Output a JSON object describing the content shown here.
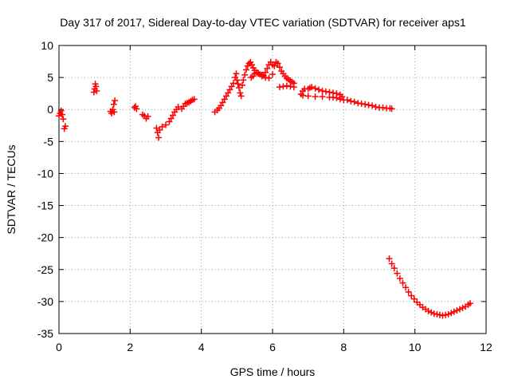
{
  "chart_data": {
    "type": "scatter",
    "title": "Day 317 of 2017, Sidereal Day-to-day VTEC variation (SDTVAR) for receiver aps1",
    "xlabel": "GPS time / hours",
    "ylabel": "SDTVAR / TECUs",
    "xlim": [
      0,
      12
    ],
    "ylim": [
      -35,
      10
    ],
    "xticks": [
      0,
      2,
      4,
      6,
      8,
      10,
      12
    ],
    "yticks": [
      10,
      5,
      0,
      -5,
      -10,
      -15,
      -20,
      -25,
      -30,
      -35
    ],
    "grid": true,
    "marker": "+",
    "color": "#ff0000",
    "series": [
      {
        "name": "aps1",
        "points": [
          [
            0.0,
            -1.0
          ],
          [
            0.03,
            -0.6
          ],
          [
            0.06,
            -0.2
          ],
          [
            0.09,
            -0.8
          ],
          [
            0.12,
            -1.5
          ],
          [
            0.15,
            -3.0
          ],
          [
            0.18,
            -2.6
          ],
          [
            0.98,
            2.7
          ],
          [
            1.0,
            3.2
          ],
          [
            1.02,
            4.0
          ],
          [
            1.04,
            3.6
          ],
          [
            1.06,
            2.9
          ],
          [
            1.45,
            -0.3
          ],
          [
            1.48,
            -0.6
          ],
          [
            1.51,
            0.0
          ],
          [
            1.54,
            0.8
          ],
          [
            1.57,
            1.4
          ],
          [
            1.55,
            -0.4
          ],
          [
            2.12,
            0.3
          ],
          [
            2.15,
            0.5
          ],
          [
            2.18,
            0.1
          ],
          [
            2.35,
            -0.8
          ],
          [
            2.4,
            -1.0
          ],
          [
            2.45,
            -1.4
          ],
          [
            2.5,
            -1.1
          ],
          [
            2.74,
            -2.9
          ],
          [
            2.77,
            -3.6
          ],
          [
            2.8,
            -4.4
          ],
          [
            2.83,
            -3.2
          ],
          [
            2.9,
            -2.7
          ],
          [
            3.0,
            -2.4
          ],
          [
            3.1,
            -1.9
          ],
          [
            3.15,
            -1.4
          ],
          [
            3.2,
            -0.9
          ],
          [
            3.25,
            -0.4
          ],
          [
            3.3,
            0.0
          ],
          [
            3.35,
            0.4
          ],
          [
            3.45,
            0.1
          ],
          [
            3.5,
            0.5
          ],
          [
            3.55,
            0.9
          ],
          [
            3.6,
            1.0
          ],
          [
            3.65,
            1.1
          ],
          [
            3.7,
            1.3
          ],
          [
            3.75,
            1.5
          ],
          [
            3.8,
            1.6
          ],
          [
            4.38,
            -0.4
          ],
          [
            4.45,
            -0.1
          ],
          [
            4.5,
            0.2
          ],
          [
            4.55,
            0.6
          ],
          [
            4.6,
            1.1
          ],
          [
            4.65,
            1.6
          ],
          [
            4.7,
            2.1
          ],
          [
            4.75,
            2.6
          ],
          [
            4.8,
            3.1
          ],
          [
            4.85,
            3.6
          ],
          [
            4.9,
            4.1
          ],
          [
            4.95,
            5.0
          ],
          [
            4.98,
            5.6
          ],
          [
            5.0,
            4.6
          ],
          [
            5.03,
            4.0
          ],
          [
            5.06,
            3.4
          ],
          [
            5.09,
            2.6
          ],
          [
            5.12,
            2.1
          ],
          [
            5.15,
            3.8
          ],
          [
            5.18,
            4.6
          ],
          [
            5.22,
            5.4
          ],
          [
            5.26,
            6.2
          ],
          [
            5.3,
            6.8
          ],
          [
            5.34,
            7.2
          ],
          [
            5.38,
            7.4
          ],
          [
            5.42,
            7.0
          ],
          [
            5.46,
            6.5
          ],
          [
            5.5,
            6.1
          ],
          [
            5.55,
            5.8
          ],
          [
            5.6,
            5.6
          ],
          [
            5.65,
            5.5
          ],
          [
            5.7,
            5.4
          ],
          [
            5.75,
            5.3
          ],
          [
            5.8,
            5.8
          ],
          [
            5.85,
            6.4
          ],
          [
            5.9,
            7.0
          ],
          [
            5.95,
            7.4
          ],
          [
            6.0,
            7.0
          ],
          [
            6.05,
            6.8
          ],
          [
            6.1,
            7.4
          ],
          [
            6.15,
            7.2
          ],
          [
            6.2,
            6.6
          ],
          [
            6.25,
            6.0
          ],
          [
            6.3,
            5.6
          ],
          [
            6.35,
            5.2
          ],
          [
            6.4,
            4.9
          ],
          [
            6.45,
            4.7
          ],
          [
            6.5,
            4.5
          ],
          [
            6.55,
            4.3
          ],
          [
            6.6,
            4.1
          ],
          [
            5.4,
            5.0
          ],
          [
            5.45,
            5.2
          ],
          [
            5.5,
            5.6
          ],
          [
            5.6,
            5.7
          ],
          [
            5.7,
            5.2
          ],
          [
            5.8,
            5.0
          ],
          [
            5.9,
            4.9
          ],
          [
            6.0,
            5.5
          ],
          [
            6.2,
            3.5
          ],
          [
            6.3,
            3.6
          ],
          [
            6.4,
            3.7
          ],
          [
            6.5,
            3.6
          ],
          [
            6.6,
            3.5
          ],
          [
            6.8,
            2.4
          ],
          [
            6.85,
            2.9
          ],
          [
            6.9,
            3.2
          ],
          [
            7.0,
            3.2
          ],
          [
            7.05,
            3.4
          ],
          [
            7.1,
            3.5
          ],
          [
            7.2,
            3.3
          ],
          [
            7.3,
            3.1
          ],
          [
            7.4,
            2.9
          ],
          [
            7.5,
            2.8
          ],
          [
            7.6,
            2.7
          ],
          [
            7.7,
            2.6
          ],
          [
            7.8,
            2.5
          ],
          [
            7.9,
            2.3
          ],
          [
            7.95,
            2.0
          ],
          [
            6.85,
            2.2
          ],
          [
            7.0,
            2.1
          ],
          [
            7.2,
            2.0
          ],
          [
            7.4,
            2.0
          ],
          [
            7.6,
            1.9
          ],
          [
            7.7,
            1.9
          ],
          [
            7.8,
            1.8
          ],
          [
            7.9,
            1.6
          ],
          [
            8.0,
            1.5
          ],
          [
            8.1,
            1.5
          ],
          [
            8.2,
            1.3
          ],
          [
            8.3,
            1.2
          ],
          [
            8.4,
            1.0
          ],
          [
            8.5,
            0.9
          ],
          [
            8.6,
            0.8
          ],
          [
            8.7,
            0.7
          ],
          [
            8.8,
            0.6
          ],
          [
            8.9,
            0.4
          ],
          [
            9.0,
            0.3
          ],
          [
            9.1,
            0.3
          ],
          [
            9.2,
            0.2
          ],
          [
            9.3,
            0.2
          ],
          [
            9.35,
            0.1
          ],
          [
            9.28,
            -23.3
          ],
          [
            9.35,
            -24.1
          ],
          [
            9.42,
            -24.8
          ],
          [
            9.5,
            -25.6
          ],
          [
            9.58,
            -26.4
          ],
          [
            9.66,
            -27.1
          ],
          [
            9.74,
            -27.8
          ],
          [
            9.82,
            -28.5
          ],
          [
            9.9,
            -29.1
          ],
          [
            9.98,
            -29.6
          ],
          [
            10.06,
            -30.1
          ],
          [
            10.14,
            -30.5
          ],
          [
            10.22,
            -30.9
          ],
          [
            10.3,
            -31.2
          ],
          [
            10.38,
            -31.5
          ],
          [
            10.46,
            -31.7
          ],
          [
            10.54,
            -31.9
          ],
          [
            10.62,
            -32.0
          ],
          [
            10.7,
            -32.1
          ],
          [
            10.78,
            -32.2
          ],
          [
            10.86,
            -32.1
          ],
          [
            10.94,
            -32.0
          ],
          [
            11.02,
            -31.8
          ],
          [
            11.1,
            -31.6
          ],
          [
            11.18,
            -31.4
          ],
          [
            11.26,
            -31.2
          ],
          [
            11.34,
            -31.0
          ],
          [
            11.42,
            -30.8
          ],
          [
            11.5,
            -30.5
          ],
          [
            11.55,
            -30.3
          ]
        ]
      }
    ]
  }
}
